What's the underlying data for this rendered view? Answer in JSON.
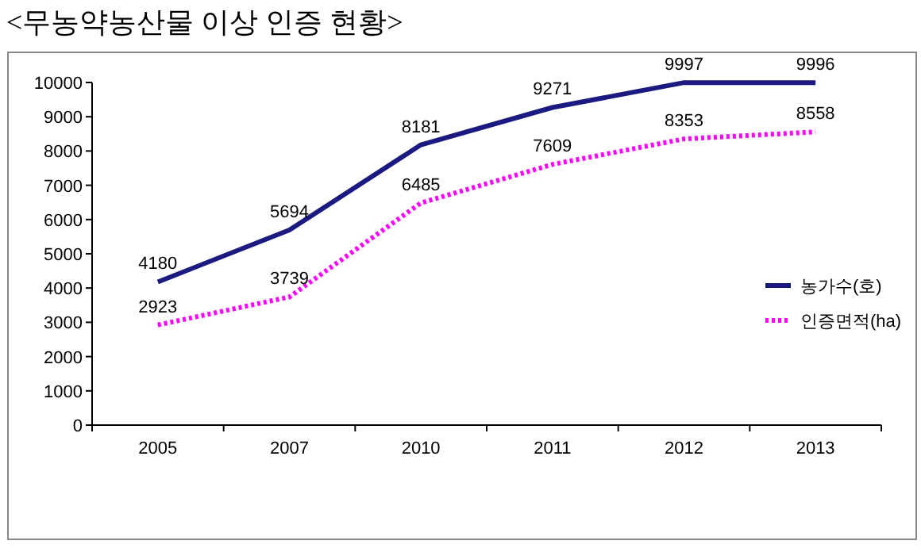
{
  "chart_data": {
    "type": "line",
    "title": "<무농약농산물 이상 인증 현황>",
    "categories": [
      "2005",
      "2007",
      "2010",
      "2011",
      "2012",
      "2013"
    ],
    "series": [
      {
        "name": "농가수(호)",
        "color": "#1a1a80",
        "line_style": "solid",
        "values": [
          4180,
          5694,
          8181,
          9271,
          9997,
          9996
        ]
      },
      {
        "name": "인증면적(ha)",
        "color": "#ff00ff",
        "line_style": "dotted",
        "values": [
          2923,
          3739,
          6485,
          7609,
          8353,
          8558
        ]
      }
    ],
    "ylim": [
      0,
      10000
    ],
    "yticks": [
      0,
      1000,
      2000,
      3000,
      4000,
      5000,
      6000,
      7000,
      8000,
      9000,
      10000
    ],
    "data_labels": true,
    "legend": "right",
    "grid": false,
    "marker": "none"
  }
}
